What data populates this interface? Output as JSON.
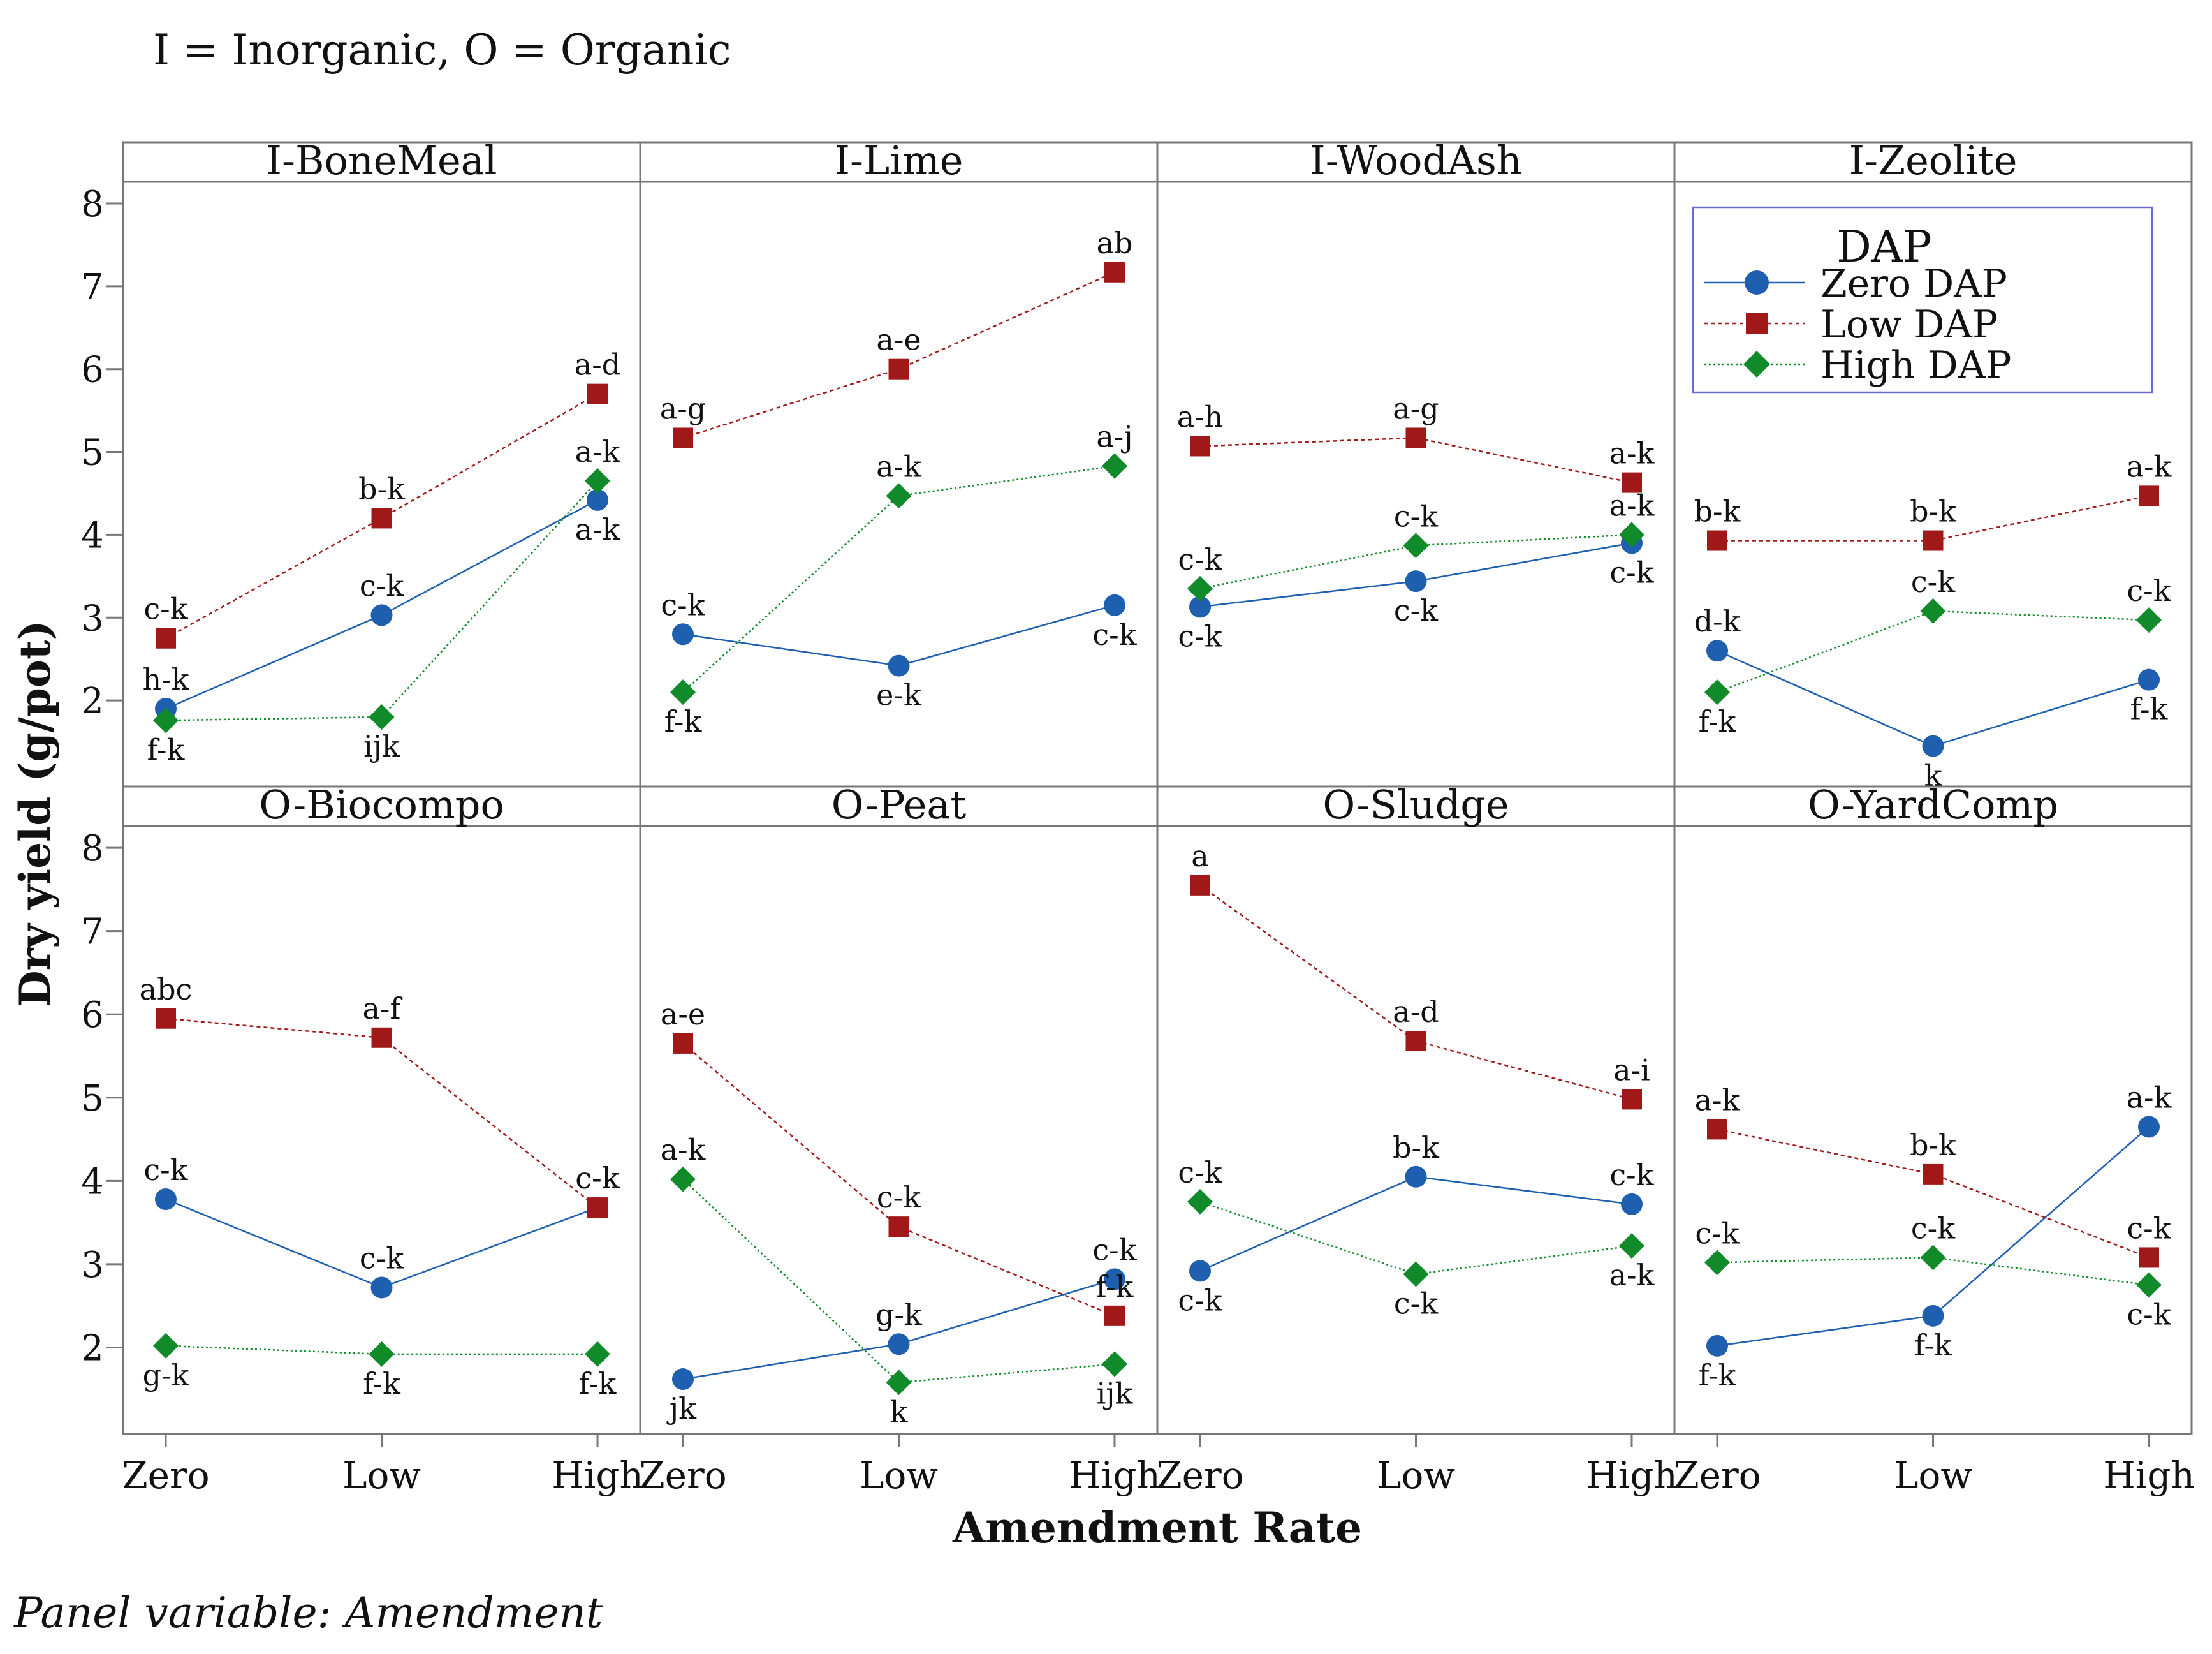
{
  "header_note": "I = Inorganic, O =  Organic",
  "footer_note": "Panel variable: Amendment",
  "colors": {
    "zero": "#1f5fb0",
    "low": "#a01818",
    "high": "#118a2a",
    "frame": "#777777"
  },
  "chart_data": {
    "type": "line",
    "xlabel": "Amendment Rate",
    "ylabel": "Dry yield (g/pot)",
    "categories": [
      "Zero",
      "Low",
      "High"
    ],
    "ylim": [
      1.0,
      8.2
    ],
    "yticks": [
      2,
      3,
      4,
      5,
      6,
      7,
      8
    ],
    "legend": {
      "title": "DAP",
      "entries": [
        "Zero DAP",
        "Low DAP",
        "High DAP"
      ],
      "placement": "top-right (inside I-Zeolite panel)"
    },
    "panels": [
      {
        "name": "I-BoneMeal",
        "series": [
          {
            "name": "Zero DAP",
            "values": [
              1.9,
              3.03,
              4.42
            ],
            "labels": [
              "h-k",
              "c-k",
              "a-k"
            ]
          },
          {
            "name": "Low DAP",
            "values": [
              2.75,
              4.2,
              5.7
            ],
            "labels": [
              "c-k",
              "b-k",
              "a-d"
            ]
          },
          {
            "name": "High DAP",
            "values": [
              1.76,
              1.8,
              4.65
            ],
            "labels": [
              "f-k",
              "ijk",
              "a-k"
            ]
          }
        ]
      },
      {
        "name": "I-Lime",
        "series": [
          {
            "name": "Zero DAP",
            "values": [
              2.8,
              2.42,
              3.15
            ],
            "labels": [
              "c-k",
              "e-k",
              "c-k"
            ]
          },
          {
            "name": "Low DAP",
            "values": [
              5.17,
              6.0,
              7.17
            ],
            "labels": [
              "a-g",
              "a-e",
              "ab"
            ]
          },
          {
            "name": "High DAP",
            "values": [
              2.1,
              4.47,
              4.83
            ],
            "labels": [
              "f-k",
              "a-k",
              "a-j"
            ]
          }
        ]
      },
      {
        "name": "I-WoodAsh",
        "series": [
          {
            "name": "Zero DAP",
            "values": [
              3.13,
              3.44,
              3.9
            ],
            "labels": [
              "c-k",
              "c-k",
              "c-k"
            ]
          },
          {
            "name": "Low DAP",
            "values": [
              5.07,
              5.17,
              4.63
            ],
            "labels": [
              "a-h",
              "a-g",
              "a-k"
            ]
          },
          {
            "name": "High DAP",
            "values": [
              3.35,
              3.87,
              4.0
            ],
            "labels": [
              "c-k",
              "c-k",
              "a-k"
            ]
          }
        ]
      },
      {
        "name": "I-Zeolite",
        "series": [
          {
            "name": "Zero DAP",
            "values": [
              2.6,
              1.45,
              2.25
            ],
            "labels": [
              "d-k",
              "k",
              "f-k"
            ]
          },
          {
            "name": "Low DAP",
            "values": [
              3.93,
              3.93,
              4.47
            ],
            "labels": [
              "b-k",
              "b-k",
              "a-k"
            ]
          },
          {
            "name": "High DAP",
            "values": [
              2.1,
              3.08,
              2.97
            ],
            "labels": [
              "f-k",
              "c-k",
              "c-k"
            ]
          }
        ]
      },
      {
        "name": "O-Biocompo",
        "series": [
          {
            "name": "Zero DAP",
            "values": [
              3.78,
              2.72,
              3.68
            ],
            "labels": [
              "c-k",
              "c-k",
              "c-k"
            ]
          },
          {
            "name": "Low DAP",
            "values": [
              5.95,
              5.72,
              3.68
            ],
            "labels": [
              "abc",
              "a-f",
              "c-k"
            ]
          },
          {
            "name": "High DAP",
            "values": [
              2.02,
              1.92,
              1.92
            ],
            "labels": [
              "g-k",
              "f-k",
              "f-k"
            ]
          }
        ]
      },
      {
        "name": "O-Peat",
        "series": [
          {
            "name": "Zero DAP",
            "values": [
              1.62,
              2.04,
              2.82
            ],
            "labels": [
              "jk",
              "g-k",
              "c-k"
            ]
          },
          {
            "name": "Low DAP",
            "values": [
              5.65,
              3.45,
              2.38
            ],
            "labels": [
              "a-e",
              "c-k",
              "f-k"
            ]
          },
          {
            "name": "High DAP",
            "values": [
              4.02,
              1.58,
              1.8
            ],
            "labels": [
              "a-k",
              "k",
              "ijk"
            ]
          }
        ]
      },
      {
        "name": "O-Sludge",
        "series": [
          {
            "name": "Zero DAP",
            "values": [
              2.92,
              4.05,
              3.72
            ],
            "labels": [
              "c-k",
              "b-k",
              "c-k"
            ]
          },
          {
            "name": "Low DAP",
            "values": [
              7.55,
              5.68,
              4.98
            ],
            "labels": [
              "a",
              "a-d",
              "a-i"
            ]
          },
          {
            "name": "High DAP",
            "values": [
              3.75,
              2.88,
              3.22
            ],
            "labels": [
              "c-k",
              "c-k",
              "a-k"
            ]
          }
        ]
      },
      {
        "name": "O-YardComp",
        "series": [
          {
            "name": "Zero DAP",
            "values": [
              2.02,
              2.38,
              4.65
            ],
            "labels": [
              "f-k",
              "f-k",
              "a-k"
            ]
          },
          {
            "name": "Low DAP",
            "values": [
              4.62,
              4.08,
              3.08
            ],
            "labels": [
              "a-k",
              "b-k",
              "c-k"
            ]
          },
          {
            "name": "High DAP",
            "values": [
              3.02,
              3.08,
              2.75
            ],
            "labels": [
              "c-k",
              "c-k",
              "c-k"
            ]
          }
        ]
      }
    ]
  }
}
